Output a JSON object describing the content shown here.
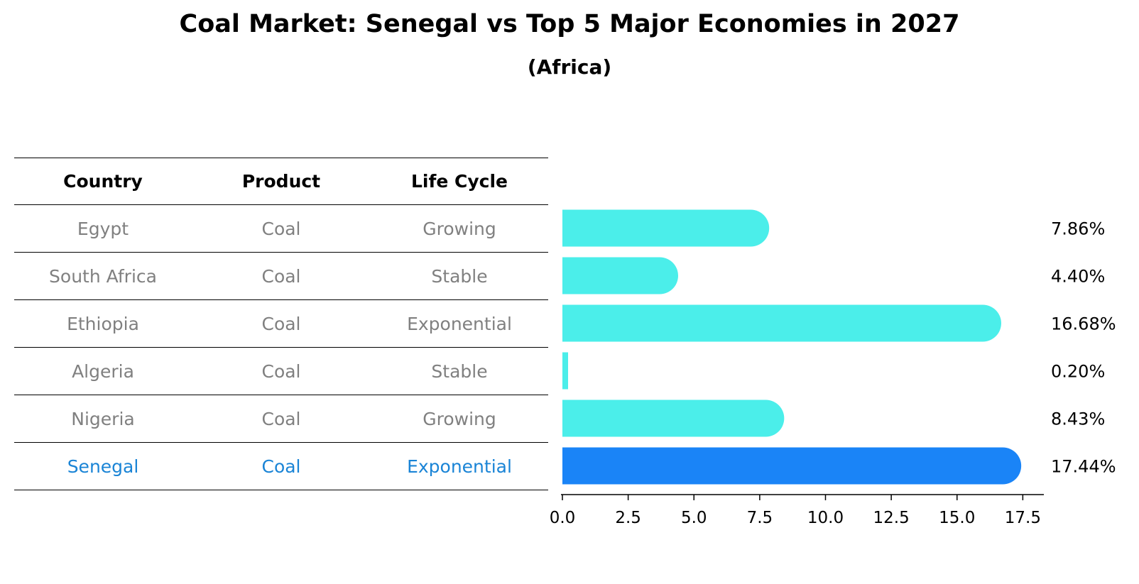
{
  "title": "Coal Market: Senegal vs Top 5 Major Economies in 2027",
  "subtitle": "(Africa)",
  "table": {
    "headers": [
      "Country",
      "Product",
      "Life Cycle"
    ],
    "rows": [
      {
        "country": "Egypt",
        "product": "Coal",
        "life_cycle": "Growing"
      },
      {
        "country": "South Africa",
        "product": "Coal",
        "life_cycle": "Stable"
      },
      {
        "country": "Ethiopia",
        "product": "Coal",
        "life_cycle": "Exponential"
      },
      {
        "country": "Algeria",
        "product": "Coal",
        "life_cycle": "Stable"
      },
      {
        "country": "Nigeria",
        "product": "Coal",
        "life_cycle": "Growing"
      },
      {
        "country": "Senegal",
        "product": "Coal",
        "life_cycle": "Exponential"
      }
    ],
    "highlight_row": 5
  },
  "colors": {
    "bar": "#4beeea",
    "highlight_bar": "#1a84f7",
    "muted_text": "#808080",
    "highlight_text": "#1a84d6"
  },
  "chart_data": {
    "type": "bar",
    "orientation": "horizontal",
    "categories": [
      "Egypt",
      "South Africa",
      "Ethiopia",
      "Algeria",
      "Nigeria",
      "Senegal"
    ],
    "values": [
      7.86,
      4.4,
      16.68,
      0.2,
      8.43,
      17.44
    ],
    "value_labels": [
      "7.86%",
      "4.40%",
      "16.68%",
      "0.20%",
      "8.43%",
      "17.44%"
    ],
    "xlim": [
      0,
      18.3
    ],
    "xticks": [
      0.0,
      2.5,
      5.0,
      7.5,
      10.0,
      12.5,
      15.0,
      17.5
    ],
    "xtick_labels": [
      "0.0",
      "2.5",
      "5.0",
      "7.5",
      "10.0",
      "12.5",
      "15.0",
      "17.5"
    ],
    "grid": false,
    "highlight_index": 5
  }
}
